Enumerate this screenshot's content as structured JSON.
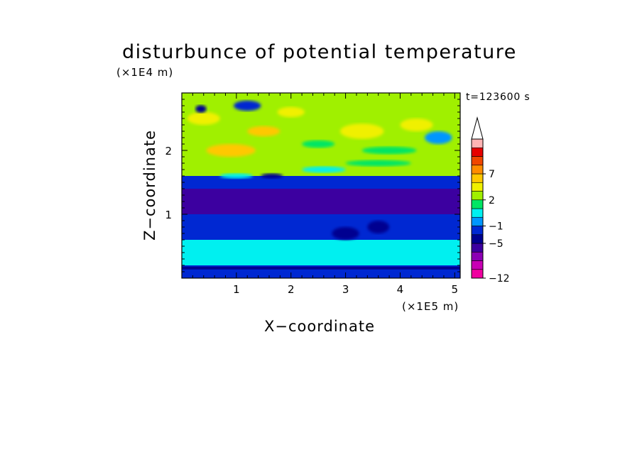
{
  "chart_data": {
    "type": "heatmap",
    "title": "disturbunce of potential temperature",
    "time_label": "t=123600 s",
    "xlabel": "X−coordinate",
    "ylabel": "Z−coordinate",
    "x_unit": "(×1E5 m)",
    "z_unit": "(×1E4 m)",
    "xlim": [
      0,
      5.1
    ],
    "ylim": [
      0,
      2.9
    ],
    "x_ticks": [
      1,
      2,
      3,
      4,
      5
    ],
    "x_tick_labels": [
      "1",
      "2",
      "3",
      "4",
      "5"
    ],
    "y_ticks": [
      1,
      2
    ],
    "y_tick_labels": [
      "1",
      "2"
    ],
    "colorbar": {
      "levels": [
        -12,
        -11,
        -9,
        -7,
        -5,
        -3,
        -1,
        0,
        1,
        2,
        4,
        5,
        7,
        8,
        10
      ],
      "labels": [
        {
          "value": -12,
          "text": "−12"
        },
        {
          "value": -5,
          "text": "−5"
        },
        {
          "value": -1,
          "text": "−1"
        },
        {
          "value": 2,
          "text": "2"
        },
        {
          "value": 7,
          "text": "7"
        }
      ],
      "colors": [
        "#f000a0",
        "#c800b4",
        "#8c00b4",
        "#3c00a0",
        "#000090",
        "#0028d2",
        "#0096ff",
        "#00f0f0",
        "#00e664",
        "#a0f000",
        "#f0f000",
        "#ffc800",
        "#ff8c00",
        "#f04600",
        "#e60000",
        "#ffb4b4"
      ],
      "extend": "max"
    },
    "field": {
      "description_bands_by_height": [
        {
          "z_range": [
            0.0,
            0.2
          ],
          "theta_prime": -2
        },
        {
          "z_range": [
            0.2,
            0.6
          ],
          "theta_prime": 0.5
        },
        {
          "z_range": [
            0.6,
            1.0
          ],
          "theta_prime": -1.5
        },
        {
          "z_range": [
            1.0,
            1.4
          ],
          "theta_prime": -6
        },
        {
          "z_range": [
            1.4,
            1.6
          ],
          "theta_prime": -2
        },
        {
          "z_range": [
            1.6,
            2.9
          ],
          "theta_prime": 3
        }
      ]
    }
  }
}
